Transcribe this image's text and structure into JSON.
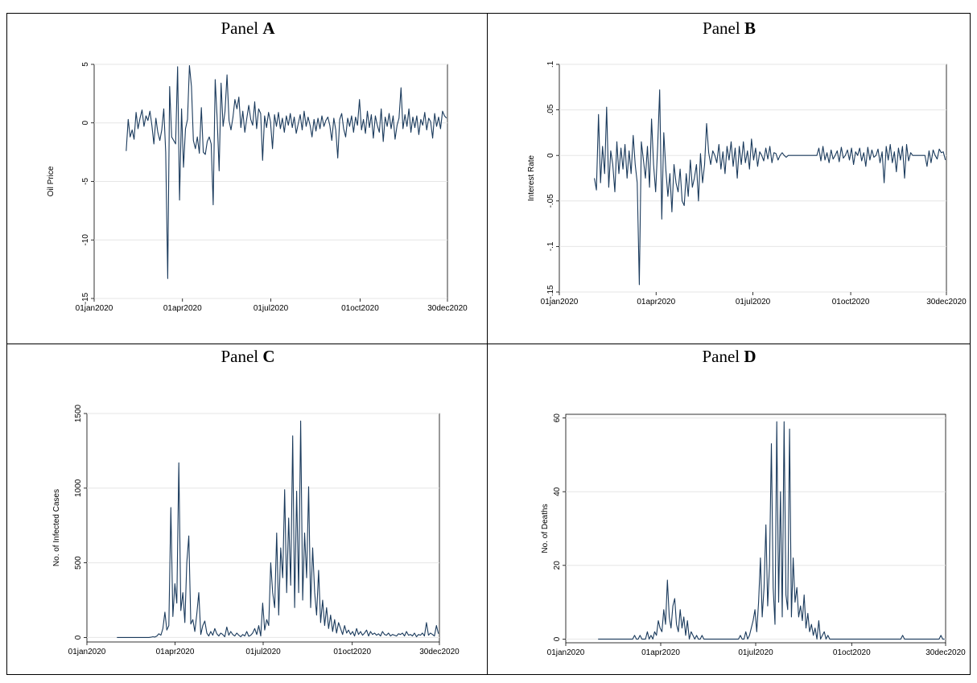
{
  "figure": {
    "colors": {
      "line": "#1a3a5c",
      "grid": "#e6e6e6",
      "border": "#000000",
      "axis": "#000000"
    }
  },
  "chart_data": [
    {
      "id": "A",
      "type": "line",
      "panel_title_prefix": "Panel ",
      "panel_title_letter": "A",
      "title": "",
      "xlabel": "",
      "ylabel": "Oil Price",
      "xlim": [
        "2020-01-01",
        "2020-12-30"
      ],
      "ylim": [
        -15,
        5
      ],
      "x_ticks": [
        "2020-01-01",
        "2020-04-01",
        "2020-07-01",
        "2020-10-01",
        "2020-12-30"
      ],
      "x_tick_labels": [
        "01jan2020",
        "01apr2020",
        "01jul2020",
        "01oct2020",
        "30dec2020"
      ],
      "y_ticks": [
        -15,
        -10,
        -5,
        0,
        5
      ],
      "y_tick_labels": [
        "-15",
        "-10",
        "-5",
        "0",
        "5"
      ],
      "grid": true,
      "x_start": "2020-02-03",
      "x_end": "2020-12-29",
      "values": [
        -2.4,
        0.3,
        -1.2,
        -0.6,
        -1.4,
        0.9,
        -0.5,
        0.4,
        1.1,
        -0.3,
        0.6,
        0.2,
        1.0,
        -0.2,
        -1.8,
        0.4,
        -0.8,
        -1.5,
        -0.6,
        1.2,
        -2.5,
        -13.3,
        3.1,
        -1.2,
        -1.5,
        -1.8,
        4.8,
        -6.6,
        1.2,
        -3.8,
        -0.5,
        0.3,
        4.9,
        3.1,
        -1.5,
        -2.2,
        -1.2,
        -2.6,
        1.3,
        -2.5,
        -2.7,
        -1.6,
        -1.2,
        -1.8,
        -7.0,
        3.7,
        0.4,
        -4.1,
        3.4,
        -0.3,
        1.0,
        4.1,
        0.2,
        -0.6,
        0.5,
        2.0,
        1.2,
        2.2,
        -0.4,
        1.0,
        -0.8,
        0.4,
        1.5,
        0.3,
        -0.2,
        1.8,
        -0.5,
        1.2,
        0.8,
        -3.2,
        0.6,
        -0.4,
        0.9,
        0.1,
        -2.2,
        0.7,
        -0.3,
        0.9,
        -0.5,
        0.4,
        -0.8,
        0.6,
        -0.2,
        0.8,
        -0.4,
        0.5,
        -0.9,
        -0.1,
        0.7,
        -0.6,
        1.0,
        -0.3,
        0.5,
        -0.2,
        -1.2,
        0.3,
        -0.7,
        0.4,
        -0.5,
        0.6,
        -0.3,
        0.2,
        0.5,
        -0.2,
        -1.5,
        0.4,
        -0.6,
        -3.0,
        0.3,
        0.8,
        -0.5,
        -1.2,
        0.4,
        -0.3,
        0.6,
        -0.8,
        0.5,
        -0.2,
        2.0,
        -0.6,
        0.3,
        -0.9,
        1.0,
        -0.4,
        0.7,
        -1.3,
        0.6,
        -0.2,
        -0.8,
        1.2,
        -1.6,
        0.5,
        -0.3,
        0.8,
        -0.5,
        0.6,
        -1.4,
        -0.2,
        0.4,
        3.0,
        -0.5,
        0.7,
        -0.3,
        1.2,
        -0.8,
        0.5,
        -0.4,
        0.6,
        -1.0,
        0.3,
        -0.2,
        0.9,
        -0.6,
        0.4,
        0.1,
        -1.3,
        0.8,
        -0.3,
        0.5,
        -0.5,
        1.0,
        0.6,
        0.4
      ]
    },
    {
      "id": "B",
      "type": "line",
      "panel_title_prefix": "Panel ",
      "panel_title_letter": "B",
      "title": "",
      "xlabel": "",
      "ylabel": "Interest Rate",
      "xlim": [
        "2020-01-01",
        "2020-12-30"
      ],
      "ylim": [
        -0.15,
        0.1
      ],
      "x_ticks": [
        "2020-01-01",
        "2020-04-01",
        "2020-07-01",
        "2020-10-01",
        "2020-12-30"
      ],
      "x_tick_labels": [
        "01jan2020",
        "01apr2020",
        "01jul2020",
        "01oct2020",
        "30dec2020"
      ],
      "y_ticks": [
        -0.15,
        -0.1,
        -0.05,
        0,
        0.05,
        0.1
      ],
      "y_tick_labels": [
        "-.15",
        "-.1",
        "-.05",
        "0",
        ".05",
        ".1"
      ],
      "grid": true,
      "x_start": "2020-02-03",
      "x_end": "2020-12-29",
      "values": [
        -0.025,
        -0.038,
        0.045,
        -0.03,
        0.01,
        -0.02,
        0.053,
        -0.035,
        0.005,
        -0.01,
        -0.04,
        0.015,
        -0.02,
        0.008,
        -0.015,
        0.012,
        -0.025,
        0.005,
        -0.02,
        0.022,
        -0.01,
        -0.03,
        -0.142,
        0.015,
        -0.005,
        -0.025,
        0.01,
        -0.035,
        0.04,
        -0.01,
        -0.04,
        0.01,
        0.072,
        -0.07,
        0.025,
        -0.015,
        -0.045,
        -0.02,
        -0.062,
        -0.01,
        -0.03,
        -0.04,
        -0.015,
        -0.05,
        -0.055,
        -0.02,
        -0.045,
        -0.005,
        -0.035,
        -0.025,
        -0.01,
        -0.05,
        0.002,
        -0.03,
        -0.01,
        0.035,
        0.003,
        -0.01,
        0.005,
        0.0,
        -0.008,
        0.012,
        -0.015,
        0.004,
        -0.02,
        0.01,
        -0.005,
        0.015,
        -0.012,
        0.008,
        -0.025,
        0.01,
        -0.01,
        0.015,
        -0.008,
        0.005,
        -0.015,
        0.018,
        -0.005,
        0.008,
        -0.012,
        0.004,
        0.0,
        -0.006,
        0.008,
        -0.004,
        0.01,
        -0.008,
        0.003,
        0.002,
        -0.005,
        0.0,
        0.003,
        0.0,
        -0.002,
        0.0,
        0.0,
        0.0,
        0.0,
        0.0,
        0.0,
        0.0,
        0.0,
        0.0,
        0.0,
        0.0,
        0.0,
        0.0,
        0.0,
        0.0,
        0.008,
        -0.006,
        0.01,
        -0.005,
        0.003,
        -0.008,
        0.006,
        -0.004,
        0.0,
        0.005,
        -0.007,
        0.009,
        -0.003,
        0.0,
        0.006,
        -0.005,
        0.008,
        -0.01,
        0.004,
        0.0,
        0.008,
        -0.006,
        0.003,
        -0.012,
        0.009,
        -0.005,
        0.006,
        -0.002,
        0.0,
        0.007,
        -0.008,
        0.004,
        -0.03,
        0.01,
        -0.005,
        0.012,
        -0.008,
        0.004,
        -0.018,
        0.008,
        -0.005,
        0.01,
        -0.025,
        0.012,
        -0.006,
        0.003,
        0.0,
        0.0,
        0.0,
        0.0,
        0.0,
        0.0,
        0.0,
        -0.012,
        0.005,
        -0.008,
        0.006,
        0.0,
        -0.004,
        0.007,
        0.003,
        0.004,
        -0.005
      ]
    },
    {
      "id": "C",
      "type": "line",
      "panel_title_prefix": "Panel ",
      "panel_title_letter": "C",
      "title": "",
      "xlabel": "",
      "ylabel": "No. of Infected Cases",
      "xlim": [
        "2020-01-01",
        "2020-12-30"
      ],
      "ylim": [
        -30,
        1500
      ],
      "x_ticks": [
        "2020-01-01",
        "2020-04-01",
        "2020-07-01",
        "2020-10-01",
        "2020-12-30"
      ],
      "x_tick_labels": [
        "01jan2020",
        "01apr2020",
        "01jul2020",
        "01oct2020",
        "30dec2020"
      ],
      "y_ticks": [
        0,
        500,
        1000,
        1500
      ],
      "y_tick_labels": [
        "0",
        "500",
        "1000",
        "1500"
      ],
      "grid": true,
      "x_start": "2020-02-01",
      "x_end": "2020-12-29",
      "values": [
        0,
        0,
        0,
        0,
        0,
        0,
        0,
        0,
        0,
        0,
        0,
        0,
        0,
        0,
        0,
        0,
        0,
        2,
        5,
        3,
        10,
        25,
        15,
        60,
        170,
        50,
        80,
        870,
        140,
        360,
        230,
        1170,
        180,
        300,
        100,
        500,
        680,
        90,
        120,
        40,
        160,
        300,
        20,
        80,
        110,
        30,
        10,
        40,
        15,
        60,
        25,
        10,
        30,
        20,
        5,
        70,
        15,
        40,
        20,
        10,
        30,
        15,
        5,
        20,
        10,
        40,
        8,
        15,
        30,
        60,
        20,
        80,
        10,
        230,
        50,
        120,
        80,
        500,
        300,
        200,
        700,
        150,
        600,
        400,
        990,
        300,
        800,
        350,
        1350,
        200,
        980,
        300,
        1450,
        250,
        700,
        400,
        1010,
        200,
        600,
        300,
        150,
        450,
        100,
        250,
        80,
        200,
        60,
        150,
        40,
        120,
        30,
        100,
        60,
        20,
        80,
        30,
        50,
        20,
        40,
        10,
        60,
        20,
        40,
        15,
        30,
        50,
        10,
        40,
        20,
        30,
        15,
        25,
        10,
        40,
        20,
        15,
        30,
        10,
        20,
        15,
        10,
        25,
        20,
        30,
        10,
        40,
        15,
        20,
        10,
        30,
        5,
        20,
        15,
        30,
        10,
        100,
        15,
        30,
        20,
        10,
        80,
        25
      ]
    },
    {
      "id": "D",
      "type": "line",
      "panel_title_prefix": "Panel ",
      "panel_title_letter": "D",
      "title": "",
      "xlabel": "",
      "ylabel": "No. of Deaths",
      "xlim": [
        "2020-01-01",
        "2020-12-30"
      ],
      "ylim": [
        -1,
        61
      ],
      "x_ticks": [
        "2020-01-01",
        "2020-04-01",
        "2020-07-01",
        "2020-10-01",
        "2020-12-30"
      ],
      "x_tick_labels": [
        "01jan2020",
        "01apr2020",
        "01jul2020",
        "01oct2020",
        "30dec2020"
      ],
      "y_ticks": [
        0,
        20,
        40,
        60
      ],
      "y_tick_labels": [
        "0",
        "20",
        "40",
        "60"
      ],
      "grid": true,
      "x_start": "2020-02-01",
      "x_end": "2020-12-29",
      "values": [
        0,
        0,
        0,
        0,
        0,
        0,
        0,
        0,
        0,
        0,
        0,
        0,
        0,
        0,
        0,
        0,
        0,
        0,
        0,
        0,
        1,
        0,
        0,
        1,
        0,
        0,
        0,
        2,
        0,
        1,
        0,
        2,
        1,
        5,
        3,
        2,
        8,
        4,
        16,
        6,
        3,
        9,
        11,
        4,
        2,
        8,
        3,
        6,
        1,
        5,
        0,
        2,
        1,
        0,
        1,
        0,
        0,
        1,
        0,
        0,
        0,
        0,
        0,
        0,
        0,
        0,
        0,
        0,
        0,
        0,
        0,
        0,
        0,
        0,
        0,
        0,
        0,
        0,
        1,
        0,
        0,
        2,
        0,
        1,
        3,
        5,
        8,
        2,
        10,
        22,
        6,
        14,
        31,
        9,
        20,
        53,
        14,
        4,
        59,
        10,
        40,
        6,
        59,
        12,
        8,
        57,
        6,
        22,
        10,
        14,
        6,
        9,
        5,
        12,
        3,
        7,
        2,
        4,
        1,
        3,
        0,
        5,
        0,
        1,
        2,
        0,
        1,
        0,
        0,
        0,
        0,
        0,
        0,
        0,
        0,
        0,
        0,
        0,
        0,
        0,
        0,
        0,
        0,
        0,
        0,
        0,
        0,
        0,
        0,
        0,
        0,
        0,
        0,
        0,
        0,
        0,
        0,
        0,
        0,
        0,
        0,
        0,
        0,
        0,
        0,
        0,
        0,
        1,
        0,
        0,
        0,
        0,
        0,
        0,
        0,
        0,
        0,
        0,
        0,
        0,
        0,
        0,
        0,
        0,
        0,
        0,
        0,
        0,
        1,
        0,
        0
      ]
    }
  ]
}
